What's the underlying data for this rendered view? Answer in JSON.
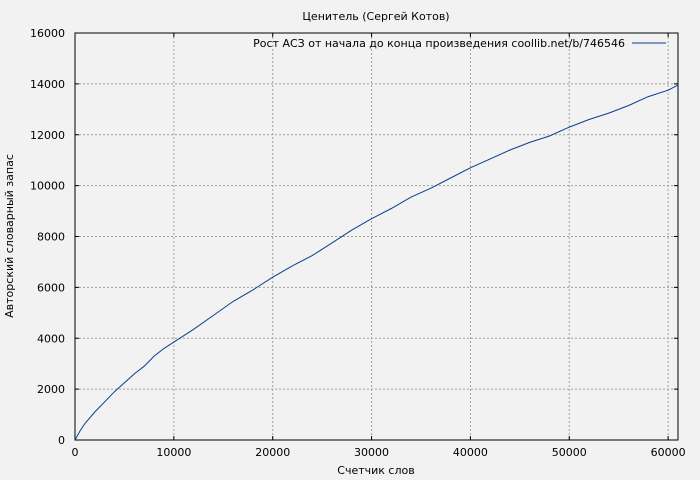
{
  "chart_data": {
    "type": "line",
    "title": "Ценитель (Сергей Котов)",
    "xlabel": "Счетчик слов",
    "ylabel": "Авторский словарный запас",
    "xlim": [
      0,
      61000
    ],
    "ylim": [
      0,
      16000
    ],
    "x_ticks": [
      0,
      10000,
      20000,
      30000,
      40000,
      50000,
      60000
    ],
    "y_ticks": [
      0,
      2000,
      4000,
      6000,
      8000,
      10000,
      12000,
      14000,
      16000
    ],
    "x_tick_labels": [
      "0",
      "10000",
      "20000",
      "30000",
      "40000",
      "50000",
      "60000"
    ],
    "y_tick_labels": [
      "0",
      "2000",
      "4000",
      "6000",
      "8000",
      "10000",
      "12000",
      "14000",
      "16000"
    ],
    "grid": true,
    "legend_position": "top-right",
    "colors": {
      "series": "#0b3d91",
      "background": "#f2f2f2",
      "grid": "#a0a0a0"
    },
    "series": [
      {
        "name": "Рост АСЗ от начала до конца произведения coollib.net/b/746546",
        "x": [
          0,
          500,
          1000,
          2000,
          3000,
          4000,
          5000,
          6000,
          7000,
          8000,
          9000,
          10000,
          12000,
          14000,
          16000,
          18000,
          20000,
          22000,
          24000,
          26000,
          28000,
          30000,
          32000,
          34000,
          36000,
          38000,
          40000,
          42000,
          44000,
          46000,
          48000,
          50000,
          52000,
          54000,
          56000,
          58000,
          60000,
          61000
        ],
        "y": [
          0,
          350,
          650,
          1100,
          1500,
          1900,
          2250,
          2600,
          2900,
          3300,
          3600,
          3850,
          4350,
          4900,
          5450,
          5900,
          6400,
          6850,
          7250,
          7750,
          8250,
          8700,
          9100,
          9550,
          9900,
          10300,
          10700,
          11050,
          11400,
          11700,
          11950,
          12300,
          12600,
          12850,
          13150,
          13500,
          13750,
          13950
        ]
      }
    ]
  }
}
